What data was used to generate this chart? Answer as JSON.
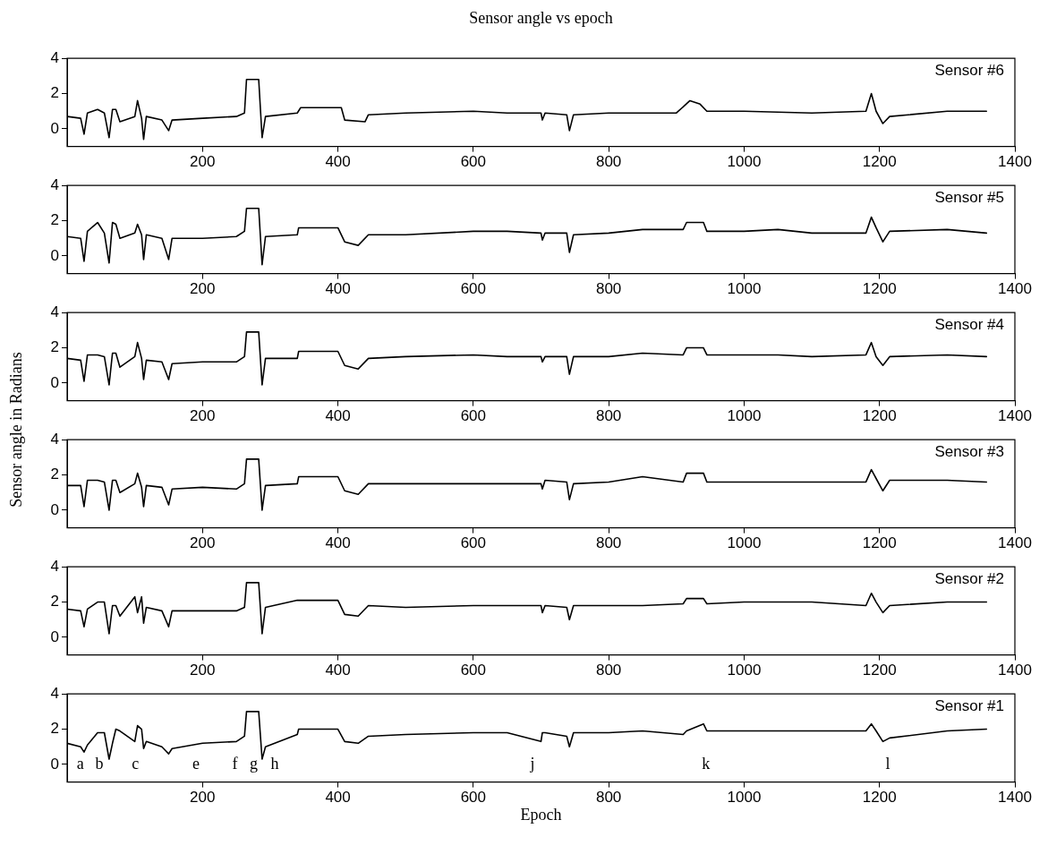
{
  "chart_data": [
    {
      "type": "line",
      "title": "Sensor angle vs epoch",
      "xlim": [
        0,
        1400
      ],
      "xticks": [
        200,
        400,
        600,
        800,
        1000,
        1200,
        1400
      ],
      "ylim": [
        -1,
        4
      ],
      "yticks": [
        0,
        2,
        4
      ],
      "grid": false,
      "marker": "none",
      "line_style": "solid",
      "x": [
        0,
        20,
        25,
        30,
        45,
        55,
        62,
        67,
        72,
        78,
        100,
        104,
        110,
        113,
        117,
        140,
        150,
        155,
        200,
        250,
        262,
        265,
        283,
        288,
        293,
        340,
        345,
        405,
        410,
        440,
        445,
        500,
        600,
        650,
        700,
        702,
        706,
        738,
        742,
        748,
        800,
        900,
        920,
        935,
        945,
        1000,
        1100,
        1180,
        1188,
        1195,
        1205,
        1215,
        1300,
        1358
      ],
      "series": [
        {
          "name": "Sensor #6",
          "color": "#000000",
          "values": [
            0.7,
            0.6,
            -0.3,
            0.9,
            1.1,
            0.9,
            -0.5,
            1.1,
            1.1,
            0.4,
            0.7,
            1.6,
            0.6,
            -0.6,
            0.7,
            0.5,
            -0.1,
            0.5,
            0.6,
            0.7,
            0.9,
            2.8,
            2.8,
            -0.5,
            0.7,
            0.9,
            1.2,
            1.2,
            0.5,
            0.4,
            0.8,
            0.9,
            1.0,
            0.9,
            0.9,
            0.5,
            0.9,
            0.8,
            -0.1,
            0.8,
            0.9,
            0.9,
            1.6,
            1.4,
            1.0,
            1.0,
            0.9,
            1.0,
            2.0,
            1.0,
            0.3,
            0.7,
            1.0,
            1.0
          ]
        }
      ]
    },
    {
      "type": "line",
      "xlim": [
        0,
        1400
      ],
      "xticks": [
        200,
        400,
        600,
        800,
        1000,
        1200,
        1400
      ],
      "ylim": [
        -1,
        4
      ],
      "yticks": [
        0,
        2,
        4
      ],
      "grid": false,
      "marker": "none",
      "line_style": "solid",
      "x": [
        0,
        20,
        25,
        30,
        45,
        55,
        62,
        67,
        72,
        78,
        100,
        104,
        110,
        113,
        117,
        140,
        150,
        155,
        200,
        250,
        262,
        265,
        283,
        288,
        293,
        340,
        342,
        400,
        410,
        430,
        445,
        500,
        600,
        650,
        700,
        702,
        706,
        738,
        742,
        748,
        800,
        850,
        910,
        915,
        940,
        945,
        1000,
        1050,
        1100,
        1180,
        1188,
        1195,
        1205,
        1215,
        1300,
        1358
      ],
      "series": [
        {
          "name": "Sensor #5",
          "color": "#000000",
          "values": [
            1.1,
            1.0,
            -0.3,
            1.4,
            1.9,
            1.3,
            -0.4,
            1.9,
            1.8,
            1.0,
            1.3,
            1.8,
            1.2,
            -0.2,
            1.2,
            1.0,
            -0.2,
            1.0,
            1.0,
            1.1,
            1.4,
            2.7,
            2.7,
            -0.5,
            1.1,
            1.2,
            1.6,
            1.6,
            0.8,
            0.6,
            1.2,
            1.2,
            1.4,
            1.4,
            1.3,
            0.9,
            1.3,
            1.3,
            0.2,
            1.2,
            1.3,
            1.5,
            1.5,
            1.9,
            1.9,
            1.4,
            1.4,
            1.5,
            1.3,
            1.3,
            2.2,
            1.6,
            0.8,
            1.4,
            1.5,
            1.3
          ]
        }
      ]
    },
    {
      "type": "line",
      "ylabel": "Sensor angle in Radians",
      "xlim": [
        0,
        1400
      ],
      "xticks": [
        200,
        400,
        600,
        800,
        1000,
        1200,
        1400
      ],
      "ylim": [
        -1,
        4
      ],
      "yticks": [
        0,
        2,
        4
      ],
      "grid": false,
      "marker": "none",
      "line_style": "solid",
      "x": [
        0,
        20,
        25,
        30,
        45,
        55,
        62,
        67,
        72,
        78,
        100,
        104,
        110,
        113,
        117,
        140,
        150,
        155,
        200,
        250,
        262,
        265,
        283,
        288,
        293,
        340,
        342,
        400,
        410,
        430,
        445,
        500,
        600,
        650,
        700,
        702,
        706,
        738,
        742,
        748,
        800,
        850,
        910,
        915,
        940,
        945,
        1000,
        1050,
        1100,
        1180,
        1188,
        1195,
        1205,
        1215,
        1300,
        1358
      ],
      "series": [
        {
          "name": "Sensor #4",
          "color": "#000000",
          "values": [
            1.4,
            1.3,
            0.1,
            1.6,
            1.6,
            1.5,
            -0.1,
            1.7,
            1.7,
            0.9,
            1.5,
            2.3,
            1.4,
            0.2,
            1.3,
            1.2,
            0.2,
            1.1,
            1.2,
            1.2,
            1.5,
            2.9,
            2.9,
            -0.1,
            1.4,
            1.4,
            1.8,
            1.8,
            1.0,
            0.8,
            1.4,
            1.5,
            1.6,
            1.5,
            1.5,
            1.2,
            1.5,
            1.5,
            0.5,
            1.5,
            1.5,
            1.7,
            1.6,
            2.0,
            2.0,
            1.6,
            1.6,
            1.6,
            1.5,
            1.6,
            2.3,
            1.5,
            1.0,
            1.5,
            1.6,
            1.5
          ]
        }
      ]
    },
    {
      "type": "line",
      "xlim": [
        0,
        1400
      ],
      "xticks": [
        200,
        400,
        600,
        800,
        1000,
        1200,
        1400
      ],
      "ylim": [
        -1,
        4
      ],
      "yticks": [
        0,
        2,
        4
      ],
      "grid": false,
      "marker": "none",
      "line_style": "solid",
      "x": [
        0,
        20,
        25,
        30,
        45,
        55,
        62,
        67,
        72,
        78,
        100,
        104,
        110,
        113,
        117,
        140,
        150,
        155,
        200,
        250,
        262,
        265,
        283,
        288,
        293,
        340,
        342,
        400,
        410,
        430,
        445,
        500,
        600,
        650,
        700,
        702,
        706,
        738,
        742,
        748,
        800,
        850,
        910,
        915,
        940,
        945,
        1000,
        1050,
        1100,
        1180,
        1188,
        1195,
        1205,
        1215,
        1300,
        1358
      ],
      "series": [
        {
          "name": "Sensor #3",
          "color": "#000000",
          "values": [
            1.4,
            1.4,
            0.2,
            1.7,
            1.7,
            1.6,
            0.0,
            1.7,
            1.7,
            1.0,
            1.5,
            2.1,
            1.3,
            0.2,
            1.4,
            1.3,
            0.3,
            1.2,
            1.3,
            1.2,
            1.5,
            2.9,
            2.9,
            0.0,
            1.4,
            1.5,
            1.9,
            1.9,
            1.1,
            0.9,
            1.5,
            1.5,
            1.5,
            1.5,
            1.5,
            1.2,
            1.7,
            1.6,
            0.6,
            1.5,
            1.6,
            1.9,
            1.6,
            2.1,
            2.1,
            1.6,
            1.6,
            1.6,
            1.6,
            1.6,
            2.3,
            1.8,
            1.1,
            1.7,
            1.7,
            1.6
          ]
        }
      ]
    },
    {
      "type": "line",
      "xlim": [
        0,
        1400
      ],
      "xticks": [
        200,
        400,
        600,
        800,
        1000,
        1200,
        1400
      ],
      "ylim": [
        -1,
        4
      ],
      "yticks": [
        0,
        2,
        4
      ],
      "grid": false,
      "marker": "none",
      "line_style": "solid",
      "x": [
        0,
        20,
        25,
        30,
        45,
        55,
        62,
        67,
        72,
        78,
        100,
        104,
        110,
        113,
        117,
        140,
        150,
        155,
        200,
        250,
        262,
        265,
        283,
        288,
        293,
        340,
        342,
        400,
        410,
        430,
        445,
        500,
        600,
        650,
        700,
        702,
        706,
        738,
        742,
        748,
        800,
        850,
        910,
        915,
        940,
        945,
        1000,
        1050,
        1100,
        1180,
        1188,
        1195,
        1205,
        1215,
        1300,
        1358
      ],
      "series": [
        {
          "name": "Sensor #2",
          "color": "#000000",
          "values": [
            1.6,
            1.5,
            0.6,
            1.6,
            2.0,
            2.0,
            0.2,
            1.8,
            1.8,
            1.2,
            2.3,
            1.4,
            2.3,
            0.8,
            1.7,
            1.5,
            0.6,
            1.5,
            1.5,
            1.5,
            1.7,
            3.1,
            3.1,
            0.2,
            1.7,
            2.1,
            2.1,
            2.1,
            1.3,
            1.2,
            1.8,
            1.7,
            1.8,
            1.8,
            1.8,
            1.4,
            1.8,
            1.7,
            1.0,
            1.8,
            1.8,
            1.8,
            1.9,
            2.2,
            2.2,
            1.9,
            2.0,
            2.0,
            2.0,
            1.8,
            2.5,
            2.0,
            1.4,
            1.8,
            2.0,
            2.0
          ]
        }
      ]
    },
    {
      "type": "line",
      "xlabel": "Epoch",
      "xlim": [
        0,
        1400
      ],
      "xticks": [
        200,
        400,
        600,
        800,
        1000,
        1200,
        1400
      ],
      "ylim": [
        -1,
        4
      ],
      "yticks": [
        0,
        2,
        4
      ],
      "grid": false,
      "marker": "none",
      "line_style": "solid",
      "x": [
        0,
        20,
        25,
        30,
        45,
        55,
        62,
        67,
        72,
        78,
        100,
        104,
        110,
        113,
        117,
        140,
        150,
        155,
        200,
        250,
        262,
        265,
        283,
        288,
        293,
        340,
        342,
        400,
        410,
        430,
        445,
        500,
        600,
        650,
        700,
        702,
        706,
        738,
        742,
        748,
        800,
        850,
        910,
        915,
        940,
        945,
        1000,
        1050,
        1100,
        1180,
        1188,
        1195,
        1205,
        1215,
        1300,
        1358
      ],
      "series": [
        {
          "name": "Sensor #1",
          "color": "#000000",
          "values": [
            1.2,
            1.0,
            0.7,
            1.1,
            1.8,
            1.8,
            0.3,
            1.2,
            2.0,
            1.9,
            1.3,
            2.2,
            2.0,
            0.9,
            1.3,
            1.0,
            0.6,
            0.9,
            1.2,
            1.3,
            1.6,
            3.0,
            3.0,
            0.3,
            1.0,
            1.7,
            2.0,
            2.0,
            1.3,
            1.2,
            1.6,
            1.7,
            1.8,
            1.8,
            1.3,
            1.8,
            1.8,
            1.6,
            1.0,
            1.8,
            1.8,
            1.9,
            1.7,
            1.9,
            2.3,
            1.9,
            1.9,
            1.9,
            1.9,
            1.9,
            2.3,
            1.9,
            1.3,
            1.5,
            1.9,
            2.0
          ]
        }
      ],
      "annotations": [
        "a",
        "b",
        "c",
        "e",
        "f",
        "g",
        "h",
        "j",
        "k",
        "l"
      ]
    }
  ]
}
